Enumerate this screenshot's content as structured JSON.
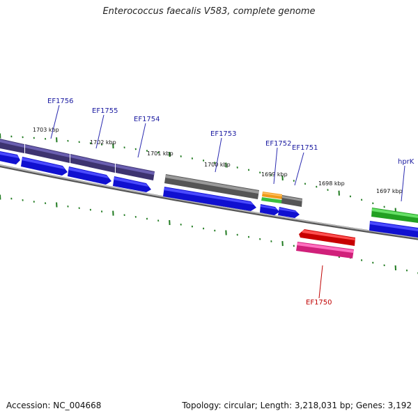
{
  "title": "Enterococcus faecalis V583, complete genome",
  "footer": {
    "accession": "Accession: NC_004668",
    "topology": "Topology: circular; Length: 3,218,031 bp; Genes: 3,192"
  },
  "colors": {
    "blue_cds": "#1010e8",
    "purple_gene": "#4a3f8a",
    "gray_gene": "#6e6e6e",
    "green_gene": "#33cc33",
    "orange_gene": "#f09a1a",
    "red_gene": "#e01010",
    "pink_gene": "#e0288a",
    "label_blue": "#1a1aa0",
    "label_red": "#c00000",
    "tick_green": "#1f7a1f"
  },
  "ticks": [
    {
      "label": "1703 kbp"
    },
    {
      "label": "1702 kbp"
    },
    {
      "label": "1701 kbp"
    },
    {
      "label": "1700 kbp"
    },
    {
      "label": "1699 kbp"
    },
    {
      "label": "1698 kbp"
    },
    {
      "label": "1697 kbp"
    }
  ],
  "genes": [
    {
      "name": "EF1756",
      "color": "label_blue"
    },
    {
      "name": "EF1755",
      "color": "label_blue"
    },
    {
      "name": "EF1754",
      "color": "label_blue"
    },
    {
      "name": "EF1753",
      "color": "label_blue"
    },
    {
      "name": "EF1752",
      "color": "label_blue"
    },
    {
      "name": "EF1751",
      "color": "label_blue"
    },
    {
      "name": "hprK",
      "color": "label_blue"
    },
    {
      "name": "EF1750",
      "color": "label_red"
    }
  ]
}
